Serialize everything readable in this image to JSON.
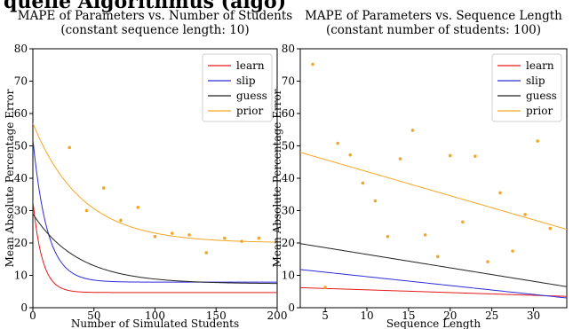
{
  "header_fragment": "quelle Algorithmus (algo)",
  "chart_data": [
    {
      "type": "line",
      "title": "MAPE of Parameters vs. Number of Students",
      "subtitle": "(constant sequence length: 10)",
      "xlabel": "Number of Simulated Students",
      "ylabel": "Mean Absolute Percentage Error",
      "xlim": [
        0,
        200
      ],
      "ylim": [
        0,
        80
      ],
      "xticks": [
        0,
        50,
        100,
        150,
        200
      ],
      "yticks": [
        0,
        10,
        20,
        30,
        40,
        50,
        60,
        70,
        80
      ],
      "grid": false,
      "legend_position": "top-right",
      "series": [
        {
          "name": "learn",
          "color": "#e31a1c",
          "curve": {
            "kind": "exp_decay",
            "start": 33,
            "floor": 4.7,
            "rate": 0.13
          }
        },
        {
          "name": "slip",
          "color": "#2b2bd9",
          "curve": {
            "kind": "exp_decay",
            "start": 52,
            "floor": 7.9,
            "rate": 0.085
          }
        },
        {
          "name": "guess",
          "color": "#222222",
          "curve": {
            "kind": "exp_decay",
            "start": 29,
            "floor": 7.4,
            "rate": 0.027
          }
        },
        {
          "name": "prior",
          "color": "#f5a623",
          "curve": {
            "kind": "exp_decay",
            "start": 57,
            "floor": 20,
            "rate": 0.025
          }
        }
      ],
      "scatter": {
        "color": "#f5a623",
        "points": [
          [
            30,
            49.5
          ],
          [
            44,
            30
          ],
          [
            58,
            37
          ],
          [
            72,
            27
          ],
          [
            86,
            31
          ],
          [
            100,
            22
          ],
          [
            114,
            23
          ],
          [
            128,
            22.5
          ],
          [
            142,
            17
          ],
          [
            157,
            21.5
          ],
          [
            171,
            20.5
          ],
          [
            185,
            21.5
          ]
        ]
      }
    },
    {
      "type": "line",
      "title": "MAPE of Parameters vs. Sequence Length",
      "subtitle": "(constant number of students: 100)",
      "xlabel": "Sequence Length",
      "ylabel": "Mean Absolute Percentage Error",
      "xlim": [
        2,
        34
      ],
      "ylim": [
        0,
        80
      ],
      "xticks": [
        5,
        10,
        15,
        20,
        25,
        30
      ],
      "yticks": [
        0,
        10,
        20,
        30,
        40,
        50,
        60,
        70,
        80
      ],
      "grid": false,
      "legend_position": "top-right",
      "series": [
        {
          "name": "learn",
          "color": "#e31a1c",
          "curve": {
            "kind": "linear",
            "y0": 6.2,
            "y1": 3.5
          }
        },
        {
          "name": "slip",
          "color": "#2b2bd9",
          "curve": {
            "kind": "linear",
            "y0": 11.8,
            "y1": 3.0
          }
        },
        {
          "name": "guess",
          "color": "#222222",
          "curve": {
            "kind": "linear",
            "y0": 19.8,
            "y1": 6.5
          }
        },
        {
          "name": "prior",
          "color": "#f5a623",
          "curve": {
            "kind": "linear",
            "y0": 48,
            "y1": 24.2
          }
        }
      ],
      "scatter": {
        "color": "#f5a623",
        "points": [
          [
            3.5,
            75.2
          ],
          [
            5,
            6.3
          ],
          [
            6.5,
            50.8
          ],
          [
            8,
            47.2
          ],
          [
            9.5,
            38.5
          ],
          [
            11,
            33
          ],
          [
            12.5,
            22
          ],
          [
            14,
            46
          ],
          [
            15.5,
            54.8
          ],
          [
            17,
            22.5
          ],
          [
            18.5,
            15.8
          ],
          [
            20,
            47
          ],
          [
            21.5,
            26.5
          ],
          [
            23,
            46.8
          ],
          [
            24.5,
            14.2
          ],
          [
            26,
            35.5
          ],
          [
            27.5,
            17.5
          ],
          [
            29,
            28.8
          ],
          [
            30.5,
            51.5
          ],
          [
            32,
            24.5
          ]
        ]
      }
    }
  ]
}
